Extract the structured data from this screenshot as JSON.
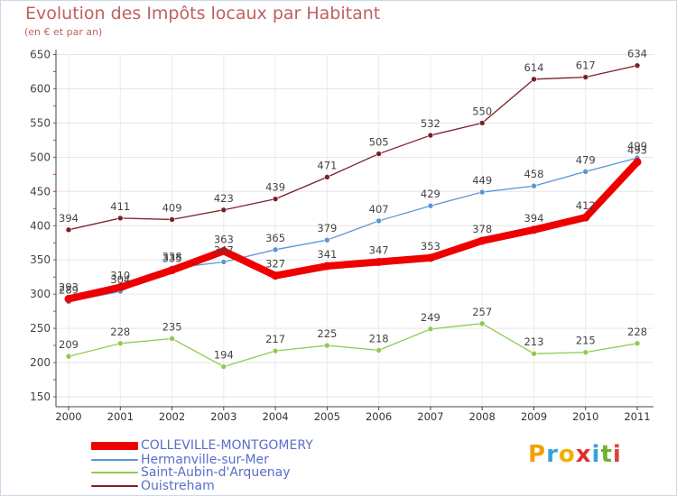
{
  "title": "Evolution des Impôts locaux par Habitant",
  "subtitle": "(en € et par an)",
  "logo": {
    "text": "Proxiti",
    "letters": [
      "P",
      "r",
      "o",
      "x",
      "i",
      "t",
      "i"
    ],
    "colors": [
      "#f5a000",
      "#3aa0e0",
      "#f0b000",
      "#e03030",
      "#3aa0e0",
      "#70b030",
      "#e04040"
    ]
  },
  "chart_data": {
    "type": "line",
    "categories": [
      "2000",
      "2001",
      "2002",
      "2003",
      "2004",
      "2005",
      "2006",
      "2007",
      "2008",
      "2009",
      "2010",
      "2011"
    ],
    "ylim": [
      150,
      650
    ],
    "yticks": [
      150,
      200,
      250,
      300,
      350,
      400,
      450,
      500,
      550,
      600,
      650
    ],
    "grid": true,
    "legend_position": "bottom-left",
    "series": [
      {
        "name": "Ouistreham",
        "color": "#7a1f28",
        "values": [
          394,
          411,
          409,
          423,
          439,
          471,
          505,
          532,
          550,
          614,
          617,
          634
        ]
      },
      {
        "name": "Saint-Aubin-d'Arquenay",
        "color": "#8ccc50",
        "values": [
          209,
          228,
          235,
          194,
          217,
          225,
          218,
          249,
          257,
          213,
          215,
          228
        ]
      },
      {
        "name": "Hermanville-sur-Mer",
        "color": "#5a96d2",
        "values": [
          289,
          304,
          338,
          347,
          365,
          379,
          407,
          429,
          449,
          458,
          479,
          499
        ]
      },
      {
        "name": "COLLEVILLE-MONTGOMERY",
        "color": "#ee0000",
        "values": [
          293,
          310,
          335,
          363,
          327,
          341,
          347,
          353,
          378,
          394,
          412,
          493
        ]
      }
    ]
  },
  "legend": [
    {
      "label": "COLLEVILLE-MONTGOMERY",
      "color": "#ee0000"
    },
    {
      "label": "Hermanville-sur-Mer",
      "color": "#5a96d2"
    },
    {
      "label": "Saint-Aubin-d'Arquenay",
      "color": "#8ccc50"
    },
    {
      "label": "Ouistreham",
      "color": "#7a1f28"
    }
  ]
}
